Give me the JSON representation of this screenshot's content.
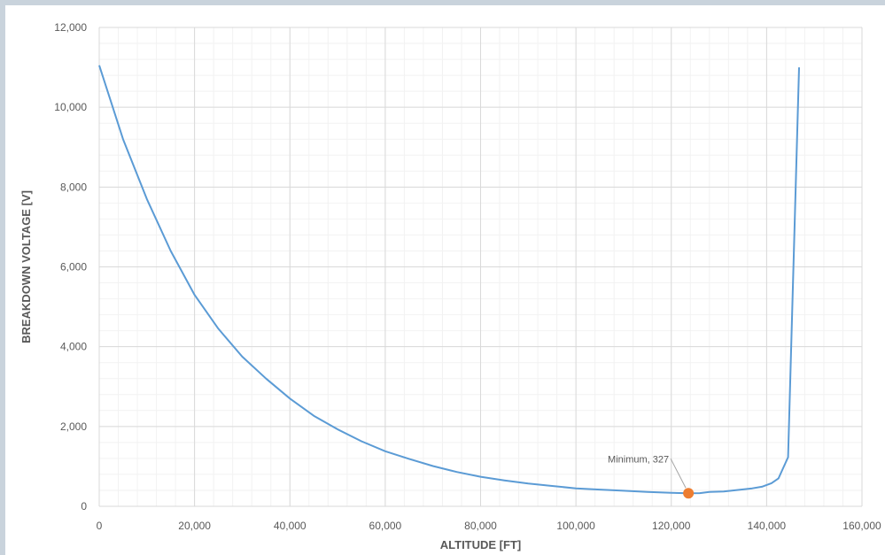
{
  "chart_data": {
    "type": "line",
    "xlabel": "ALTITUDE [FT]",
    "ylabel": "BREAKDOWN VOLTAGE [V]",
    "xlim": [
      0,
      160000
    ],
    "ylim": [
      0,
      12000
    ],
    "x_ticks": [
      0,
      20000,
      40000,
      60000,
      80000,
      100000,
      120000,
      140000,
      160000
    ],
    "y_ticks": [
      0,
      2000,
      4000,
      6000,
      8000,
      10000,
      12000
    ],
    "x_tick_labels": [
      "0",
      "20,000",
      "40,000",
      "60,000",
      "80,000",
      "100,000",
      "120,000",
      "140,000",
      "160,000"
    ],
    "y_tick_labels": [
      "0",
      "2,000",
      "4,000",
      "6,000",
      "8,000",
      "10,000",
      "12,000"
    ],
    "grid": true,
    "series": [
      {
        "color": "#5b9bd5",
        "x": [
          0,
          5000,
          10000,
          15000,
          20000,
          25000,
          30000,
          35000,
          40000,
          45000,
          50000,
          55000,
          60000,
          65000,
          70000,
          75000,
          80000,
          85000,
          90000,
          95000,
          100000,
          105000,
          110000,
          115000,
          120000,
          123600,
          126000,
          128000,
          131000,
          134000,
          137000,
          139000,
          141000,
          142500,
          144500,
          146800
        ],
        "y": [
          11050,
          9200,
          7700,
          6400,
          5300,
          4450,
          3750,
          3200,
          2700,
          2270,
          1930,
          1630,
          1380,
          1190,
          1010,
          860,
          740,
          650,
          570,
          510,
          450,
          420,
          390,
          360,
          340,
          327,
          330,
          360,
          370,
          410,
          450,
          490,
          580,
          700,
          1230,
          11000
        ]
      }
    ],
    "annotations": [
      {
        "text": "Minimum, 327",
        "x": 123600,
        "y": 327,
        "marker_color": "#ed7d31"
      }
    ]
  }
}
